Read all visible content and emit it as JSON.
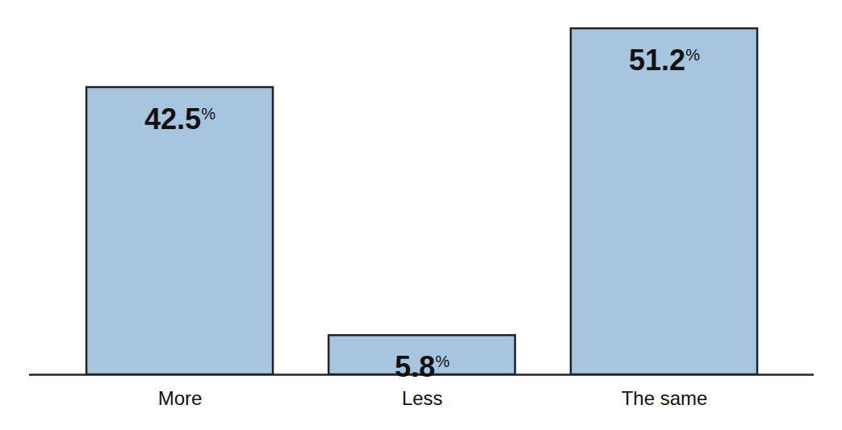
{
  "chart_data": {
    "type": "bar",
    "categories": [
      "More",
      "Less",
      "The same"
    ],
    "values": [
      42.5,
      5.8,
      51.2
    ],
    "value_labels": [
      "42.5%",
      "5.8%",
      "51.2%"
    ],
    "color": "#a7c5df",
    "ylim": [
      0,
      53
    ],
    "yticks": [],
    "data_labels": true,
    "tick_labels": "x",
    "grid": false
  }
}
